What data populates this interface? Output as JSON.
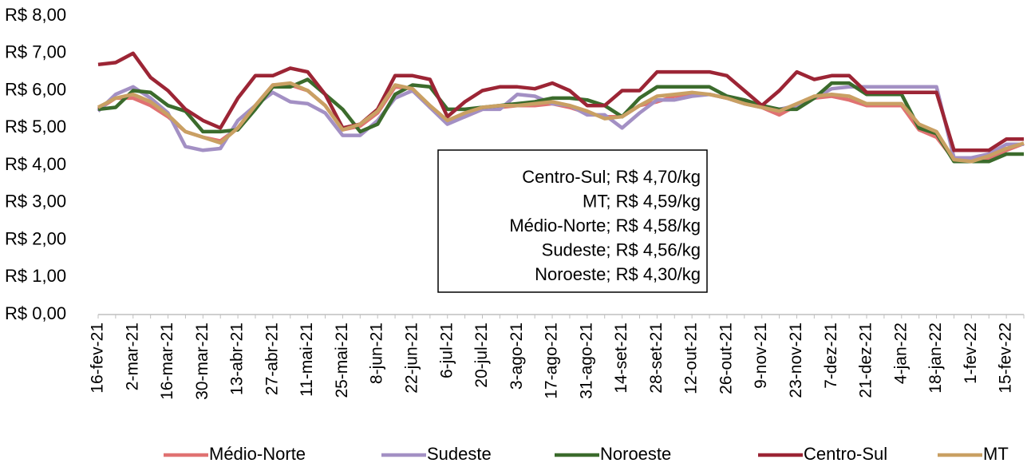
{
  "chart_data": {
    "type": "line",
    "categories": [
      "16-fev-21",
      null,
      "2-mar-21",
      null,
      "16-mar-21",
      null,
      "30-mar-21",
      null,
      "13-abr-21",
      null,
      "27-abr-21",
      null,
      "11-mai-21",
      null,
      "25-mai-21",
      null,
      "8-jun-21",
      null,
      "22-jun-21",
      null,
      "6-jul-21",
      null,
      "20-jul-21",
      null,
      "3-ago-21",
      null,
      "17-ago-21",
      null,
      "31-ago-21",
      null,
      "14-set-21",
      null,
      "28-set-21",
      null,
      "12-out-21",
      null,
      "26-out-21",
      null,
      "9-nov-21",
      null,
      "23-nov-21",
      null,
      "7-dez-21",
      null,
      "21-dez-21",
      null,
      "4-jan-22",
      null,
      "18-jan-22",
      null,
      "1-fev-22",
      null,
      "15-fev-22",
      null
    ],
    "ylim": [
      0,
      8
    ],
    "yticks": [
      {
        "value": 0,
        "label": "R$ 0,00"
      },
      {
        "value": 1,
        "label": "R$ 1,00"
      },
      {
        "value": 2,
        "label": "R$ 2,00"
      },
      {
        "value": 3,
        "label": "R$ 3,00"
      },
      {
        "value": 4,
        "label": "R$ 4,00"
      },
      {
        "value": 5,
        "label": "R$ 5,00"
      },
      {
        "value": 6,
        "label": "R$ 6,00"
      },
      {
        "value": 7,
        "label": "R$ 7,00"
      },
      {
        "value": 8,
        "label": "R$ 8,00"
      }
    ],
    "grid": false,
    "legend": "bottom",
    "annotations": [
      "Centro-Sul; R$ 4,70/kg",
      "MT; R$ 4,59/kg",
      "Médio-Norte; R$ 4,58/kg",
      "Sudeste; R$ 4,56/kg",
      "Noroeste; R$ 4,30/kg"
    ],
    "series": [
      {
        "name": "Médio-Norte",
        "color": "#e07272",
        "values": [
          5.5,
          5.8,
          5.8,
          5.6,
          5.3,
          4.9,
          4.75,
          4.65,
          5.0,
          5.6,
          6.15,
          6.15,
          6.0,
          5.6,
          4.95,
          5.05,
          5.4,
          6.1,
          6.05,
          5.55,
          5.15,
          5.3,
          5.5,
          5.55,
          5.6,
          5.6,
          5.65,
          5.55,
          5.4,
          5.3,
          5.3,
          5.6,
          5.7,
          5.85,
          5.9,
          5.9,
          5.8,
          5.65,
          5.55,
          5.35,
          5.6,
          5.8,
          5.85,
          5.75,
          5.6,
          5.6,
          5.6,
          4.95,
          4.75,
          4.15,
          4.15,
          4.2,
          4.4,
          4.58
        ]
      },
      {
        "name": "Sudeste",
        "color": "#a390c4",
        "values": [
          5.45,
          5.9,
          6.1,
          5.8,
          5.4,
          4.5,
          4.4,
          4.45,
          5.2,
          5.6,
          5.95,
          5.7,
          5.65,
          5.4,
          4.8,
          4.8,
          5.2,
          5.8,
          6.0,
          5.55,
          5.1,
          5.3,
          5.5,
          5.5,
          5.9,
          5.85,
          5.65,
          5.6,
          5.35,
          5.35,
          5.0,
          5.4,
          5.75,
          5.75,
          5.85,
          5.9,
          5.8,
          5.65,
          5.55,
          5.5,
          5.6,
          5.8,
          6.05,
          6.1,
          6.1,
          6.1,
          6.1,
          6.1,
          6.1,
          4.2,
          4.2,
          4.3,
          4.56,
          4.56
        ]
      },
      {
        "name": "Noroeste",
        "color": "#3b6b2c",
        "values": [
          5.5,
          5.55,
          6.0,
          5.95,
          5.6,
          5.45,
          4.9,
          4.9,
          4.95,
          5.5,
          6.1,
          6.1,
          6.3,
          5.9,
          5.5,
          4.9,
          5.1,
          5.9,
          6.15,
          6.1,
          5.5,
          5.5,
          5.55,
          5.6,
          5.65,
          5.7,
          5.8,
          5.8,
          5.75,
          5.6,
          5.3,
          5.8,
          6.1,
          6.1,
          6.1,
          6.1,
          5.85,
          5.75,
          5.6,
          5.5,
          5.5,
          5.8,
          6.2,
          6.2,
          5.9,
          5.9,
          5.9,
          5.0,
          4.85,
          4.1,
          4.1,
          4.1,
          4.3,
          4.3
        ]
      },
      {
        "name": "Centro-Sul",
        "color": "#9c2535",
        "values": [
          6.7,
          6.75,
          7.0,
          6.35,
          6.0,
          5.5,
          5.2,
          5.0,
          5.8,
          6.4,
          6.4,
          6.6,
          6.5,
          5.9,
          5.0,
          5.1,
          5.5,
          6.4,
          6.4,
          6.3,
          5.3,
          5.7,
          6.0,
          6.1,
          6.1,
          6.05,
          6.2,
          6.0,
          5.6,
          5.6,
          6.0,
          6.0,
          6.5,
          6.5,
          6.5,
          6.5,
          6.4,
          6.0,
          5.6,
          6.0,
          6.5,
          6.3,
          6.4,
          6.4,
          5.95,
          5.95,
          5.95,
          5.95,
          5.95,
          4.4,
          4.4,
          4.4,
          4.7,
          4.7
        ]
      },
      {
        "name": "MT",
        "color": "#c9a063",
        "values": [
          5.55,
          5.8,
          5.9,
          5.7,
          5.35,
          4.9,
          4.75,
          4.6,
          5.0,
          5.6,
          6.15,
          6.2,
          6.0,
          5.6,
          4.95,
          5.1,
          5.45,
          6.15,
          6.05,
          5.6,
          5.2,
          5.4,
          5.55,
          5.6,
          5.6,
          5.65,
          5.7,
          5.6,
          5.45,
          5.25,
          5.3,
          5.6,
          5.85,
          5.9,
          5.95,
          5.9,
          5.8,
          5.65,
          5.55,
          5.45,
          5.65,
          5.85,
          5.9,
          5.85,
          5.65,
          5.65,
          5.65,
          5.1,
          4.9,
          4.15,
          4.1,
          4.25,
          4.45,
          4.59
        ]
      }
    ]
  }
}
